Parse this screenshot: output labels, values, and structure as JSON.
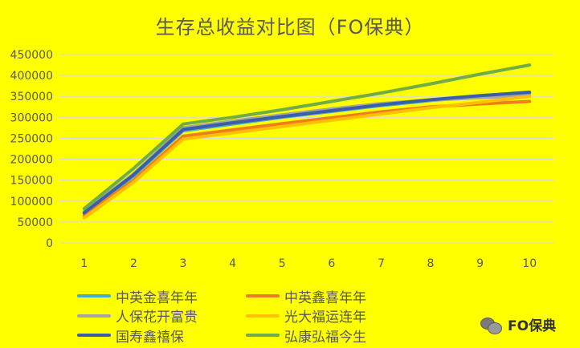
{
  "chart_data": {
    "type": "line",
    "title": "生存总收益对比图（FO保典）",
    "categories": [
      "1",
      "2",
      "3",
      "4",
      "5",
      "6",
      "7",
      "8",
      "9",
      "10"
    ],
    "ylim": [
      0,
      450000
    ],
    "yticks": [
      "0",
      "50000",
      "100000",
      "150000",
      "200000",
      "250000",
      "300000",
      "350000",
      "400000",
      "450000"
    ],
    "grid": true,
    "legend_position": "bottom-left",
    "series": [
      {
        "name": "中英金喜年年",
        "color": "#4bacc6",
        "values": [
          70000,
          160000,
          268000,
          284000,
          300000,
          314000,
          328000,
          340000,
          350000,
          358000
        ]
      },
      {
        "name": "中英鑫喜年年",
        "color": "#f07d1c",
        "values": [
          65000,
          150000,
          255000,
          270000,
          285000,
          299000,
          313000,
          325000,
          332000,
          338000
        ]
      },
      {
        "name": "人保花开富贵",
        "color": "#a5a5a5",
        "values": [
          75000,
          165000,
          275000,
          291000,
          306000,
          320000,
          333000,
          341000,
          347000,
          352000
        ]
      },
      {
        "name": "光大福运连年",
        "color": "#ffc000",
        "values": [
          60000,
          145000,
          248000,
          263000,
          278000,
          293000,
          308000,
          323000,
          336000,
          350000
        ]
      },
      {
        "name": "国寿鑫禧保",
        "color": "#3a5fa8",
        "values": [
          72000,
          163000,
          271000,
          287000,
          302000,
          316000,
          330000,
          342000,
          352000,
          360000
        ]
      },
      {
        "name": "弘康弘福今生",
        "color": "#70ad47",
        "values": [
          82000,
          178000,
          284000,
          300000,
          318000,
          338000,
          358000,
          380000,
          403000,
          425000
        ]
      }
    ]
  },
  "watermark": {
    "text": "FO保典",
    "icon": "wechat-icon"
  }
}
